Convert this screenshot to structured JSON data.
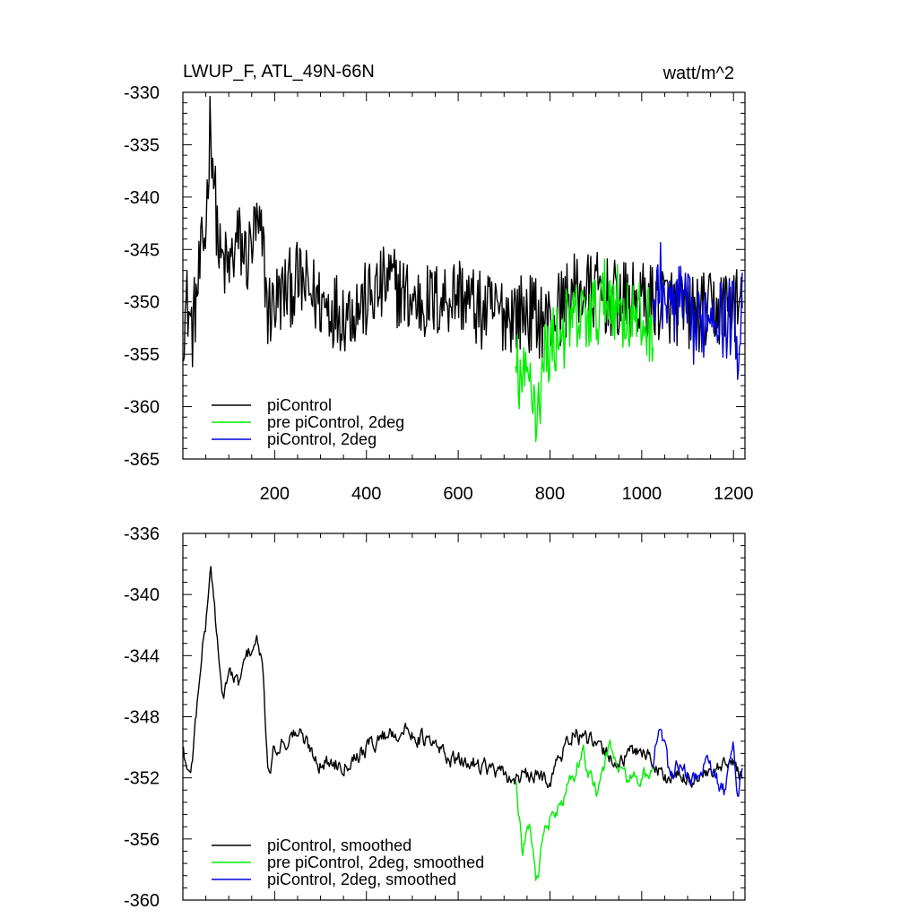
{
  "chart_data": [
    {
      "type": "line",
      "title": "LWUP_F, ATL_49N-66N",
      "units": "watt/m^2",
      "ylim": [
        -365,
        -330
      ],
      "yticks": [
        -330,
        -335,
        -340,
        -345,
        -350,
        -355,
        -360,
        -365
      ],
      "xlim": [
        0,
        1225
      ],
      "xticks": [
        200,
        400,
        600,
        800,
        1000,
        1200
      ],
      "series": [
        {
          "name": "piControl",
          "color": "#000000",
          "x_range": [
            1,
            1220
          ],
          "keypoints": [
            [
              1,
              -352
            ],
            [
              10,
              -350
            ],
            [
              20,
              -353
            ],
            [
              40,
              -346
            ],
            [
              50,
              -343
            ],
            [
              60,
              -332
            ],
            [
              70,
              -340
            ],
            [
              80,
              -346
            ],
            [
              100,
              -347
            ],
            [
              120,
              -344
            ],
            [
              140,
              -346
            ],
            [
              160,
              -343
            ],
            [
              175,
              -345
            ],
            [
              185,
              -351
            ],
            [
              200,
              -350
            ],
            [
              250,
              -348
            ],
            [
              300,
              -350
            ],
            [
              350,
              -351
            ],
            [
              400,
              -350
            ],
            [
              450,
              -348
            ],
            [
              500,
              -350
            ],
            [
              550,
              -350
            ],
            [
              600,
              -349
            ],
            [
              650,
              -351
            ],
            [
              700,
              -351
            ],
            [
              750,
              -351
            ],
            [
              800,
              -352
            ],
            [
              830,
              -350
            ],
            [
              860,
              -349
            ],
            [
              900,
              -349
            ],
            [
              950,
              -350
            ],
            [
              1000,
              -350
            ],
            [
              1050,
              -350
            ],
            [
              1100,
              -351
            ],
            [
              1150,
              -351
            ],
            [
              1200,
              -350
            ],
            [
              1220,
              -351
            ]
          ]
        },
        {
          "name": "pre piControl, 2deg",
          "color": "#00ee00",
          "x_range": [
            725,
            1025
          ],
          "keypoints": [
            [
              725,
              -356
            ],
            [
              740,
              -358
            ],
            [
              760,
              -357
            ],
            [
              770,
              -361
            ],
            [
              790,
              -355
            ],
            [
              820,
              -353
            ],
            [
              850,
              -352
            ],
            [
              900,
              -351
            ],
            [
              930,
              -349
            ],
            [
              960,
              -351
            ],
            [
              1000,
              -352
            ],
            [
              1025,
              -352
            ]
          ]
        },
        {
          "name": "piControl, 2deg",
          "color": "#0000dd",
          "x_range": [
            1025,
            1220
          ],
          "keypoints": [
            [
              1025,
              -351
            ],
            [
              1040,
              -348
            ],
            [
              1060,
              -351
            ],
            [
              1080,
              -350
            ],
            [
              1100,
              -351
            ],
            [
              1120,
              -353
            ],
            [
              1140,
              -351
            ],
            [
              1160,
              -350
            ],
            [
              1180,
              -352
            ],
            [
              1200,
              -351
            ],
            [
              1210,
              -354
            ],
            [
              1220,
              -349
            ]
          ]
        }
      ],
      "legend": [
        "piControl",
        "pre piControl, 2deg",
        "piControl, 2deg"
      ]
    },
    {
      "type": "line",
      "ylim": [
        -360,
        -336
      ],
      "yticks": [
        -336,
        -340,
        -344,
        -348,
        -352,
        -356,
        -360
      ],
      "xlim": [
        0,
        1225
      ],
      "series": [
        {
          "name": "piControl, smoothed",
          "color": "#000000",
          "x_range": [
            1,
            1220
          ],
          "keypoints": [
            [
              1,
              -350
            ],
            [
              10,
              -352
            ],
            [
              20,
              -351
            ],
            [
              40,
              -344
            ],
            [
              50,
              -342
            ],
            [
              60,
              -338
            ],
            [
              70,
              -341
            ],
            [
              85,
              -347
            ],
            [
              100,
              -345
            ],
            [
              120,
              -346
            ],
            [
              140,
              -344
            ],
            [
              160,
              -343
            ],
            [
              175,
              -345
            ],
            [
              185,
              -352
            ],
            [
              200,
              -350
            ],
            [
              250,
              -349
            ],
            [
              300,
              -351
            ],
            [
              350,
              -351
            ],
            [
              400,
              -350
            ],
            [
              450,
              -349
            ],
            [
              500,
              -349
            ],
            [
              550,
              -350
            ],
            [
              600,
              -351
            ],
            [
              650,
              -351
            ],
            [
              700,
              -352
            ],
            [
              760,
              -352
            ],
            [
              800,
              -352
            ],
            [
              850,
              -349
            ],
            [
              900,
              -350
            ],
            [
              950,
              -351
            ],
            [
              1000,
              -350
            ],
            [
              1050,
              -352
            ],
            [
              1100,
              -352
            ],
            [
              1150,
              -352
            ],
            [
              1200,
              -351
            ],
            [
              1220,
              -352
            ]
          ]
        },
        {
          "name": "pre piControl, 2deg, smoothed",
          "color": "#00ee00",
          "x_range": [
            725,
            1025
          ],
          "keypoints": [
            [
              725,
              -352
            ],
            [
              740,
              -357
            ],
            [
              755,
              -355
            ],
            [
              770,
              -359
            ],
            [
              790,
              -355
            ],
            [
              820,
              -354
            ],
            [
              850,
              -352
            ],
            [
              870,
              -350
            ],
            [
              900,
              -353
            ],
            [
              930,
              -350
            ],
            [
              960,
              -352
            ],
            [
              1000,
              -352
            ],
            [
              1025,
              -352
            ]
          ]
        },
        {
          "name": "piControl, 2deg, smoothed",
          "color": "#0000dd",
          "x_range": [
            1025,
            1220
          ],
          "keypoints": [
            [
              1025,
              -351
            ],
            [
              1040,
              -348
            ],
            [
              1060,
              -352
            ],
            [
              1080,
              -351
            ],
            [
              1100,
              -352
            ],
            [
              1120,
              -352
            ],
            [
              1140,
              -351
            ],
            [
              1160,
              -352
            ],
            [
              1180,
              -353
            ],
            [
              1200,
              -350
            ],
            [
              1210,
              -353
            ],
            [
              1220,
              -351
            ]
          ]
        }
      ],
      "legend": [
        "piControl, smoothed",
        "pre piControl, 2deg, smoothed",
        "piControl, 2deg, smoothed"
      ]
    }
  ]
}
